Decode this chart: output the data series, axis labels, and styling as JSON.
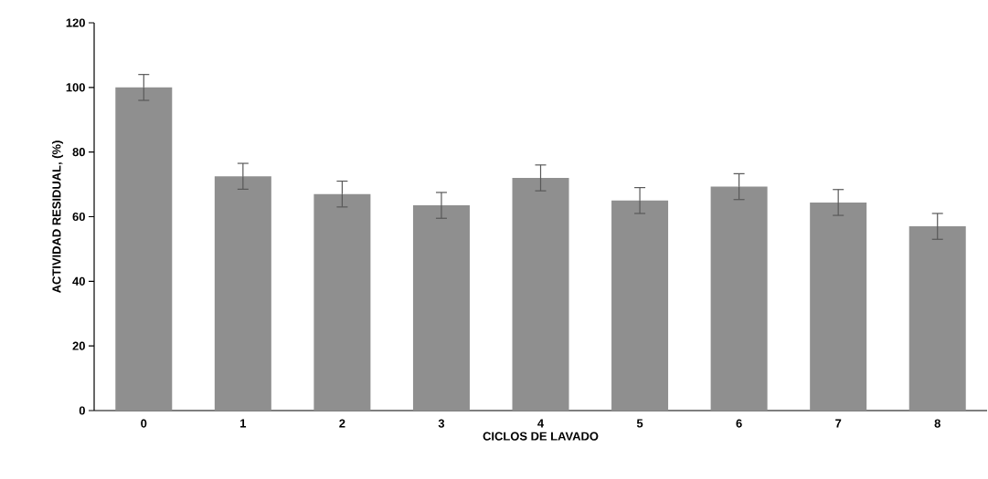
{
  "chart_data": {
    "type": "bar",
    "xlabel": "CICLOS DE LAVADO",
    "ylabel": "ACTIVIDAD RESIDUAL, (%)",
    "categories": [
      "0",
      "1",
      "2",
      "3",
      "4",
      "5",
      "6",
      "7",
      "8"
    ],
    "values": [
      100,
      72.5,
      67,
      63.5,
      72,
      65,
      69.3,
      64.4,
      57
    ],
    "errors": [
      4,
      4,
      4,
      4,
      4,
      4,
      4,
      4,
      4
    ],
    "color": "#8f8f8f",
    "ylim": [
      0,
      120
    ],
    "yticks": [
      0,
      20,
      40,
      60,
      80,
      100,
      120
    ],
    "grid": false
  }
}
